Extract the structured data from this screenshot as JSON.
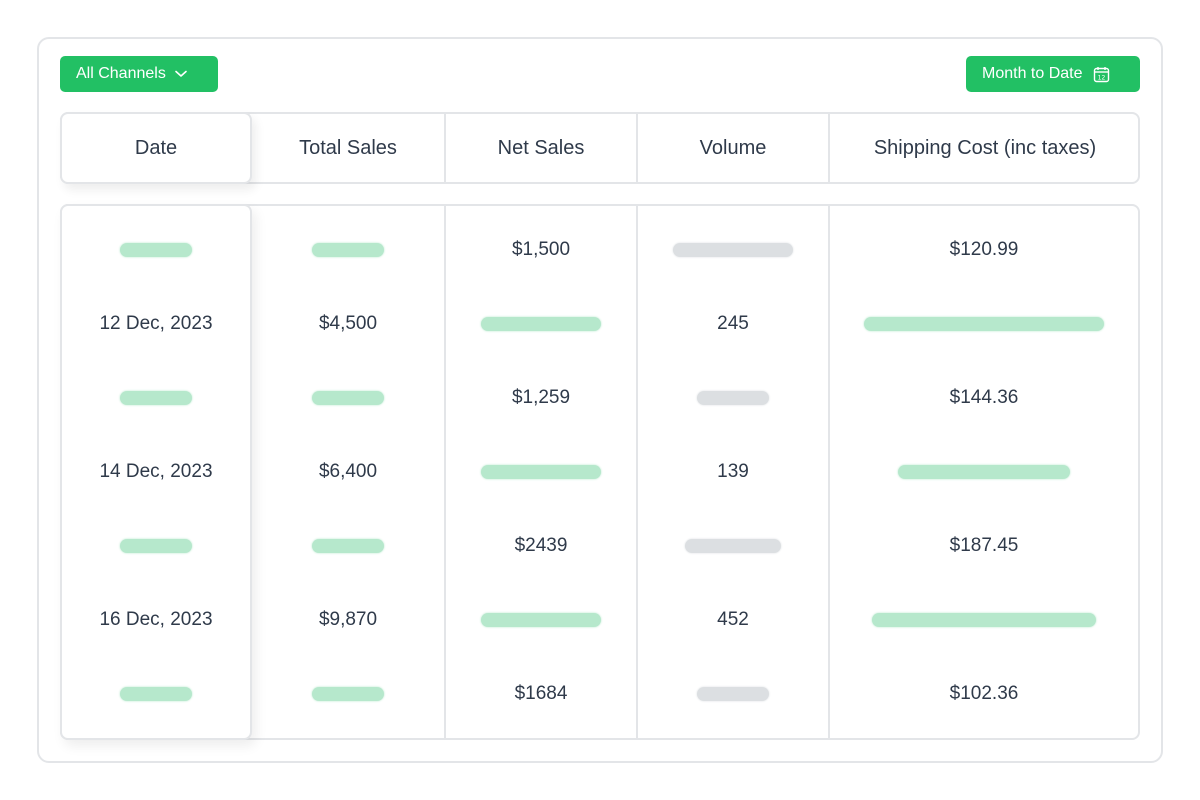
{
  "toolbar": {
    "channels_label": "All Channels",
    "period_label": "Month to Date"
  },
  "table": {
    "headers": [
      "Date",
      "Total Sales",
      "Net Sales",
      "Volume",
      "Shipping Cost (inc taxes)"
    ],
    "rows": [
      {
        "date": null,
        "total_sales": null,
        "net_sales": "$1,500",
        "volume": null,
        "shipping": "$120.99"
      },
      {
        "date": "12 Dec, 2023",
        "total_sales": "$4,500",
        "net_sales": null,
        "volume": "245",
        "shipping": null
      },
      {
        "date": null,
        "total_sales": null,
        "net_sales": "$1,259",
        "volume": null,
        "shipping": "$144.36"
      },
      {
        "date": "14 Dec, 2023",
        "total_sales": "$6,400",
        "net_sales": null,
        "volume": "139",
        "shipping": null
      },
      {
        "date": null,
        "total_sales": null,
        "net_sales": "$2439",
        "volume": null,
        "shipping": "$187.45"
      },
      {
        "date": "16 Dec, 2023",
        "total_sales": "$9,870",
        "net_sales": null,
        "volume": "452",
        "shipping": null
      },
      {
        "date": null,
        "total_sales": null,
        "net_sales": "$1684",
        "volume": null,
        "shipping": "$102.36"
      }
    ]
  },
  "colors": {
    "accent": "#22c064",
    "placeholder_green": "#b6e8cc",
    "placeholder_gray": "#dcdfe2",
    "border": "#e3e5e8",
    "text": "#2f3a4a"
  }
}
